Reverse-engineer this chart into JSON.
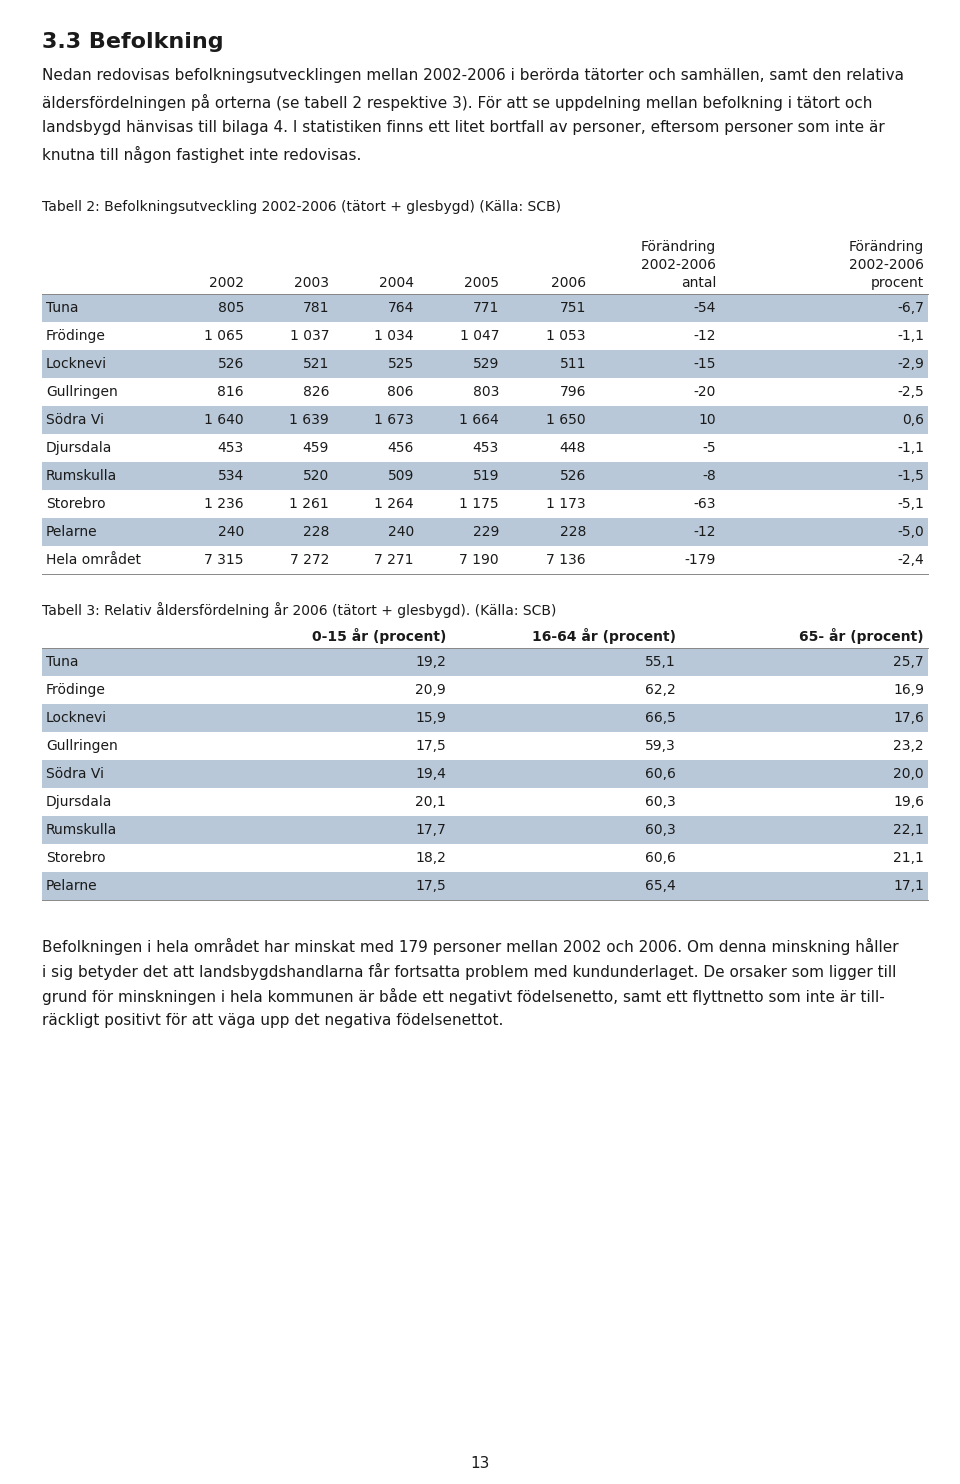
{
  "bg_color": "#ffffff",
  "text_color": "#1a1a1a",
  "section_title": "3.3 Befolkning",
  "intro_text": "Nedan redovisas befolkningsutvecklingen mellan 2002-2006 i berörda tätorter och samhällen, samt den relativa\näldersfördelningen på orterna (se tabell 2 respektive 3). För att se uppdelning mellan befolkning i tätort och\nlandsbygd hänvisas till bilaga 4. I statistiken finns ett litet bortfall av personer, eftersom personer som inte är\nknutna till någon fastighet inte redovisas.",
  "table2_caption": "Tabell 2: Befolkningsutveckling 2002-2006 (tätort + glesbygd) (Källa: SCB)",
  "table2_headers": [
    "",
    "2002",
    "2003",
    "2004",
    "2005",
    "2006",
    "Förändring\n2002-2006\nantal",
    "Förändring\n2002-2006\nprocent"
  ],
  "table2_rows": [
    [
      "Tuna",
      "805",
      "781",
      "764",
      "771",
      "751",
      "-54",
      "-6,7"
    ],
    [
      "Frödinge",
      "1 065",
      "1 037",
      "1 034",
      "1 047",
      "1 053",
      "-12",
      "-1,1"
    ],
    [
      "Locknevi",
      "526",
      "521",
      "525",
      "529",
      "511",
      "-15",
      "-2,9"
    ],
    [
      "Gullringen",
      "816",
      "826",
      "806",
      "803",
      "796",
      "-20",
      "-2,5"
    ],
    [
      "Södra Vi",
      "1 640",
      "1 639",
      "1 673",
      "1 664",
      "1 650",
      "10",
      "0,6"
    ],
    [
      "Djursdala",
      "453",
      "459",
      "456",
      "453",
      "448",
      "-5",
      "-1,1"
    ],
    [
      "Rumskulla",
      "534",
      "520",
      "509",
      "519",
      "526",
      "-8",
      "-1,5"
    ],
    [
      "Storebro",
      "1 236",
      "1 261",
      "1 264",
      "1 175",
      "1 173",
      "-63",
      "-5,1"
    ],
    [
      "Pelarne",
      "240",
      "228",
      "240",
      "229",
      "228",
      "-12",
      "-5,0"
    ],
    [
      "Hela området",
      "7 315",
      "7 272",
      "7 271",
      "7 190",
      "7 136",
      "-179",
      "-2,4"
    ]
  ],
  "table3_caption": "Tabell 3: Relativ åldersfördelning år 2006 (tätort + glesbygd). (Källa: SCB)",
  "table3_headers": [
    "",
    "0-15 år (procent)",
    "16-64 år (procent)",
    "65- år (procent)"
  ],
  "table3_rows": [
    [
      "Tuna",
      "19,2",
      "55,1",
      "25,7"
    ],
    [
      "Frödinge",
      "20,9",
      "62,2",
      "16,9"
    ],
    [
      "Locknevi",
      "15,9",
      "66,5",
      "17,6"
    ],
    [
      "Gullringen",
      "17,5",
      "59,3",
      "23,2"
    ],
    [
      "Södra Vi",
      "19,4",
      "60,6",
      "20,0"
    ],
    [
      "Djursdala",
      "20,1",
      "60,3",
      "19,6"
    ],
    [
      "Rumskulla",
      "17,7",
      "60,3",
      "22,1"
    ],
    [
      "Storebro",
      "18,2",
      "60,6",
      "21,1"
    ],
    [
      "Pelarne",
      "17,5",
      "65,4",
      "17,1"
    ]
  ],
  "closing_text": "Befolkningen i hela området har minskat med 179 personer mellan 2002 och 2006. Om denna minskning håller\ni sig betyder det att landsbygdshandlarna får fortsatta problem med kundunderlaget. De orsaker som ligger till\ngrund för minskningen i hela kommunen är både ett negativt födelsenetto, samt ett flyttnetto som inte är till-\nräckligt positivt för att väga upp det negativa födelsenettot.",
  "page_number": "13",
  "row_color_even": "#b8c8d8",
  "row_color_odd": "#ffffff"
}
